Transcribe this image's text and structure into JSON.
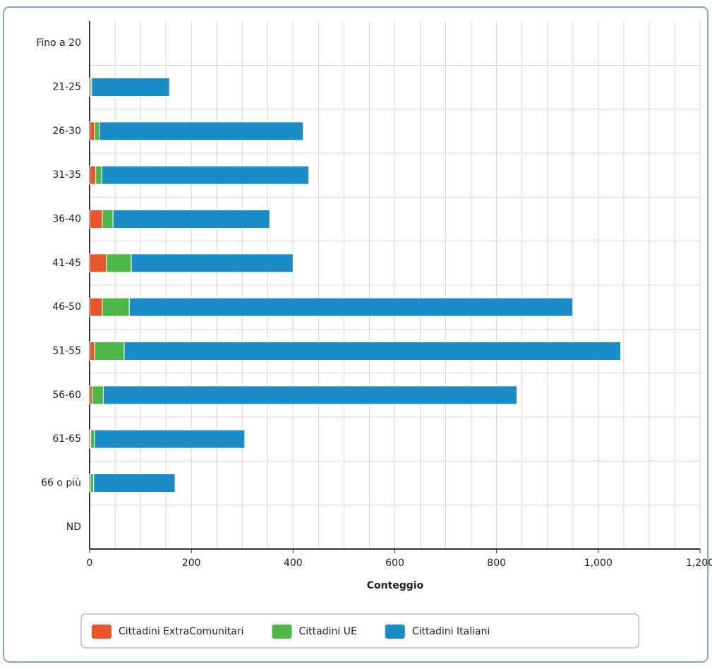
{
  "chart_data": {
    "type": "stacked-horizontal-bar",
    "x_label": "Conteggio",
    "categories": [
      "Fino a 20",
      "21-25",
      "26-30",
      "31-35",
      "36-40",
      "41-45",
      "46-50",
      "51-55",
      "56-60",
      "61-65",
      "66 o più",
      "ND"
    ],
    "series": [
      {
        "name": "Cittadini ExtraComunitari",
        "color": "#e8562a",
        "values": [
          0,
          1,
          10,
          12,
          25,
          33,
          25,
          10,
          5,
          2,
          1,
          0
        ]
      },
      {
        "name": "Cittadini UE",
        "color": "#4db848",
        "values": [
          0,
          3,
          9,
          12,
          21,
          49,
          53,
          58,
          22,
          8,
          7,
          0
        ]
      },
      {
        "name": "Cittadini Italiani",
        "color": "#1a8dc9",
        "values": [
          0,
          153,
          401,
          407,
          308,
          318,
          872,
          976,
          813,
          295,
          160,
          0
        ]
      }
    ],
    "xlim": [
      0,
      1200
    ],
    "xticks": [
      0,
      200,
      400,
      600,
      800,
      {
        "value": 1000,
        "label": "1,000"
      },
      {
        "value": 1200,
        "label": "1,200"
      }
    ],
    "grid": true
  }
}
